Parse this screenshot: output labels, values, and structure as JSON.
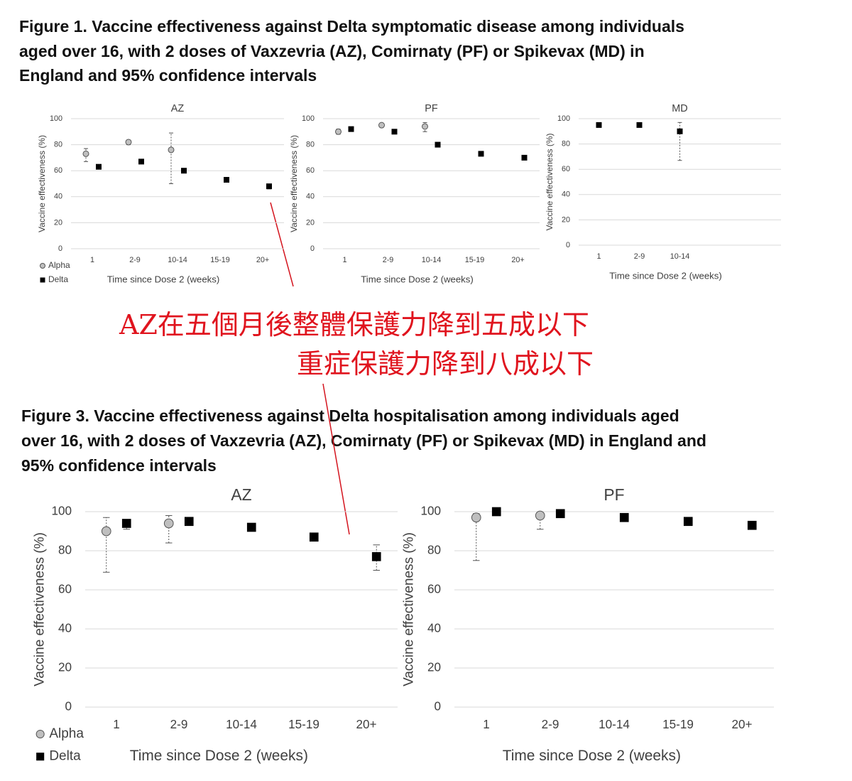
{
  "figure_titles": [
    [
      "Figure 1. Vaccine effectiveness against Delta symptomatic disease among individuals",
      "aged over 16, with 2 doses of Vaxzevria (AZ), Comirnaty (PF) or Spikevax (MD) in",
      "England and 95% confidence intervals"
    ],
    [
      "Figure 3. Vaccine effectiveness against Delta hospitalisation among individuals aged",
      "over 16, with 2 doses of Vaxzevria (AZ), Comirnaty (PF) or Spikevax (MD) in England and",
      "95% confidence intervals"
    ]
  ],
  "annotation": [
    "AZ在五個月後整體保護力降到五成以下",
    "重症保護力降到八成以下"
  ],
  "chart_data": [
    {
      "type": "scatter",
      "title": "AZ",
      "x_label": "Time since Dose 2 (weeks)",
      "y_label": "Vaccine effectiveness (%)",
      "categories": [
        "1",
        "2-9",
        "10-14",
        "15-19",
        "20+"
      ],
      "ylim": [
        0,
        100
      ],
      "yticks": [
        0,
        20,
        40,
        60,
        80,
        100
      ],
      "grid": true,
      "legend": "bottom-left",
      "series": [
        {
          "name": "Alpha",
          "color": "#bfbfbf",
          "marker": "circle",
          "values": [
            73,
            82,
            76,
            null,
            null
          ],
          "ci_low": [
            67,
            80,
            50,
            null,
            null
          ],
          "ci_high": [
            77,
            83,
            89,
            null,
            null
          ]
        },
        {
          "name": "Delta",
          "color": "#000000",
          "marker": "square",
          "values": [
            63,
            67,
            60,
            53,
            48
          ],
          "ci_low": [
            62,
            66,
            59,
            52,
            46
          ],
          "ci_high": [
            64,
            68,
            61,
            54,
            49
          ]
        }
      ]
    },
    {
      "type": "scatter",
      "title": "PF",
      "x_label": "Time since Dose 2 (weeks)",
      "y_label": "Vaccine effectiveness (%)",
      "categories": [
        "1",
        "2-9",
        "10-14",
        "15-19",
        "20+"
      ],
      "ylim": [
        0,
        100
      ],
      "yticks": [
        0,
        20,
        40,
        60,
        80,
        100
      ],
      "grid": true,
      "series": [
        {
          "name": "Alpha",
          "color": "#bfbfbf",
          "marker": "circle",
          "values": [
            90,
            95,
            94,
            null,
            null
          ],
          "ci_low": [
            88,
            94,
            90,
            null,
            null
          ],
          "ci_high": [
            92,
            96,
            97,
            null,
            null
          ]
        },
        {
          "name": "Delta",
          "color": "#000000",
          "marker": "square",
          "values": [
            92,
            90,
            80,
            73,
            70
          ],
          "ci_low": [
            91,
            89,
            79,
            72,
            69
          ],
          "ci_high": [
            93,
            91,
            81,
            74,
            71
          ]
        }
      ]
    },
    {
      "type": "scatter",
      "title": "MD",
      "x_label": "Time since Dose 2 (weeks)",
      "y_label": "Vaccine effectiveness (%)",
      "categories": [
        "1",
        "2-9",
        "10-14"
      ],
      "ylim": [
        0,
        100
      ],
      "yticks": [
        0,
        20,
        40,
        60,
        80,
        100
      ],
      "grid": true,
      "series": [
        {
          "name": "Delta",
          "color": "#000000",
          "marker": "square",
          "values": [
            95,
            95,
            90
          ],
          "ci_low": [
            94,
            94,
            67
          ],
          "ci_high": [
            96,
            96,
            97
          ]
        }
      ]
    },
    {
      "type": "scatter",
      "title": "AZ",
      "x_label": "Time since Dose 2 (weeks)",
      "y_label": "Vaccine effectiveness (%)",
      "categories": [
        "1",
        "2-9",
        "10-14",
        "15-19",
        "20+"
      ],
      "ylim": [
        0,
        100
      ],
      "yticks": [
        0,
        20,
        40,
        60,
        80,
        100
      ],
      "grid": true,
      "legend": "bottom-left",
      "series": [
        {
          "name": "Alpha",
          "color": "#bfbfbf",
          "marker": "circle",
          "values": [
            90,
            94,
            null,
            null,
            null
          ],
          "ci_low": [
            69,
            84,
            null,
            null,
            null
          ],
          "ci_high": [
            97,
            98,
            null,
            null,
            null
          ]
        },
        {
          "name": "Delta",
          "color": "#000000",
          "marker": "square",
          "values": [
            94,
            95,
            92,
            87,
            77
          ],
          "ci_low": [
            91,
            94,
            91,
            86,
            70
          ],
          "ci_high": [
            96,
            96,
            93,
            88,
            83
          ]
        }
      ]
    },
    {
      "type": "scatter",
      "title": "PF",
      "x_label": "Time since Dose 2 (weeks)",
      "y_label": "Vaccine effectiveness (%)",
      "categories": [
        "1",
        "2-9",
        "10-14",
        "15-19",
        "20+"
      ],
      "ylim": [
        0,
        100
      ],
      "yticks": [
        0,
        20,
        40,
        60,
        80,
        100
      ],
      "grid": true,
      "series": [
        {
          "name": "Alpha",
          "color": "#bfbfbf",
          "marker": "circle",
          "values": [
            97,
            98,
            null,
            null,
            null
          ],
          "ci_low": [
            75,
            91,
            null,
            null,
            null
          ],
          "ci_high": [
            99,
            99,
            null,
            null,
            null
          ]
        },
        {
          "name": "Delta",
          "color": "#000000",
          "marker": "square",
          "values": [
            100,
            99,
            97,
            95,
            93
          ],
          "ci_low": [
            99,
            98,
            96,
            94,
            91
          ],
          "ci_high": [
            100,
            100,
            98,
            96,
            94
          ]
        }
      ]
    }
  ]
}
